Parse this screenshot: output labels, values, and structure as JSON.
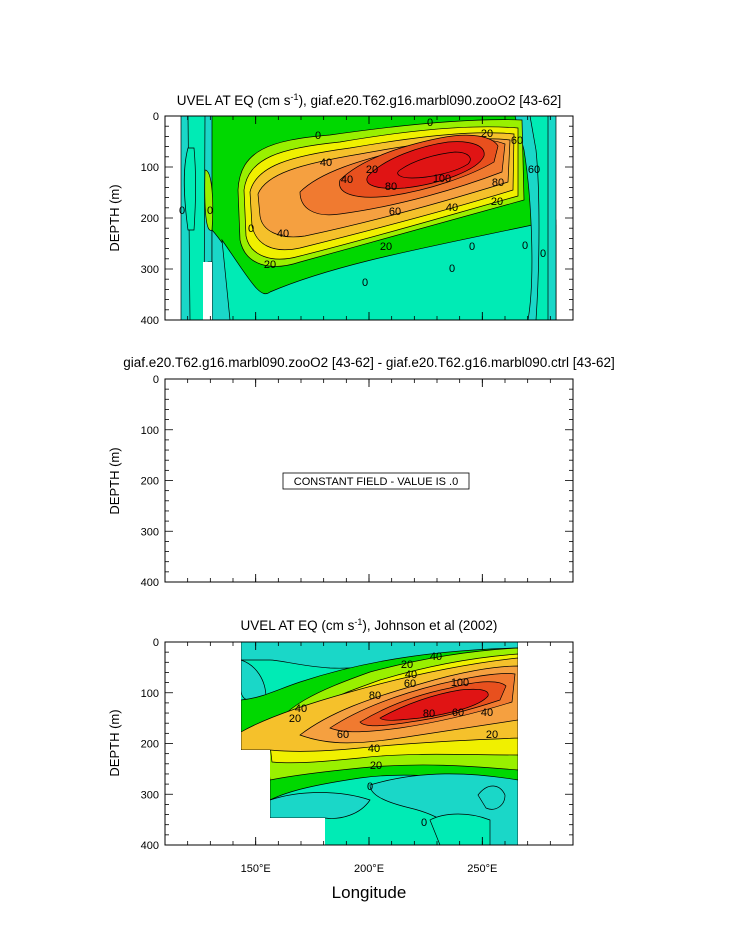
{
  "figure": {
    "xlabel": "Longitude",
    "x_tick_labels": [
      "150°E",
      "200°E",
      "250°E"
    ]
  },
  "colors": {
    "levels": [
      "#1ad7c8",
      "#00ebb5",
      "#00d800",
      "#99f000",
      "#f0f000",
      "#f5c12b",
      "#f5a040",
      "#f07a30",
      "#e8501e",
      "#e01414"
    ],
    "contour_line": "#000000"
  },
  "chart_data": [
    {
      "type": "heatmap",
      "title": "UVEL AT EQ (cm s-1), giaf.e20.T62.g16.marbl090.zooO2 [43-62]",
      "title_parts": {
        "pre": "UVEL AT EQ (cm s",
        "sup": "-1",
        "post": "), giaf.e20.T62.g16.marbl090.zooO2 [43-62]"
      },
      "ylabel": "DEPTH (m)",
      "xlim": [
        110,
        290
      ],
      "ylim": [
        400,
        0
      ],
      "y_ticks": [
        0,
        100,
        200,
        300,
        400
      ],
      "x_ticks": [
        150,
        200,
        250
      ],
      "data_extent": {
        "lon": [
          117,
          278
        ],
        "depth": [
          0,
          400
        ]
      },
      "land_gaps": [
        {
          "lon": [
            127,
            130
          ],
          "depth": [
            290,
            400
          ]
        }
      ],
      "core": {
        "lon": 225,
        "depth": 120,
        "max_speed": 110
      },
      "contour_labels": [
        "0",
        "0",
        "20",
        "40",
        "20",
        "40",
        "60",
        "80",
        "100",
        "80",
        "60",
        "60",
        "40",
        "20",
        "40",
        "20",
        "0",
        "0",
        "20",
        "0",
        "0",
        "0",
        "0",
        "0",
        "0"
      ]
    },
    {
      "type": "heatmap",
      "title": "giaf.e20.T62.g16.marbl090.zooO2 [43-62] - giaf.e20.T62.g16.marbl090.ctrl [43-62]",
      "ylabel": "DEPTH (m)",
      "xlim": [
        110,
        290
      ],
      "ylim": [
        400,
        0
      ],
      "y_ticks": [
        0,
        100,
        200,
        300,
        400
      ],
      "x_ticks": [
        150,
        200,
        250
      ],
      "constant_field_note": "CONSTANT FIELD - VALUE IS .0",
      "values": [
        0
      ]
    },
    {
      "type": "heatmap",
      "title": "UVEL AT EQ (cm s-1), Johnson et al (2002)",
      "title_parts": {
        "pre": "UVEL AT EQ (cm s",
        "sup": "-1",
        "post": "), Johnson et al (2002)"
      },
      "ylabel": "DEPTH (m)",
      "xlim": [
        110,
        290
      ],
      "ylim": [
        400,
        0
      ],
      "y_ticks": [
        0,
        100,
        200,
        300,
        400
      ],
      "x_ticks": [
        150,
        200,
        250
      ],
      "data_extent": {
        "lon": [
          143,
          265
        ],
        "depth": [
          0,
          400
        ]
      },
      "core": {
        "lon": 232,
        "depth": 105,
        "max_speed": 110
      },
      "contour_labels": [
        "20",
        "40",
        "60",
        "80",
        "100",
        "80",
        "60",
        "40",
        "20",
        "40",
        "60",
        "40",
        "20",
        "0",
        "0",
        "20",
        "40"
      ]
    }
  ]
}
